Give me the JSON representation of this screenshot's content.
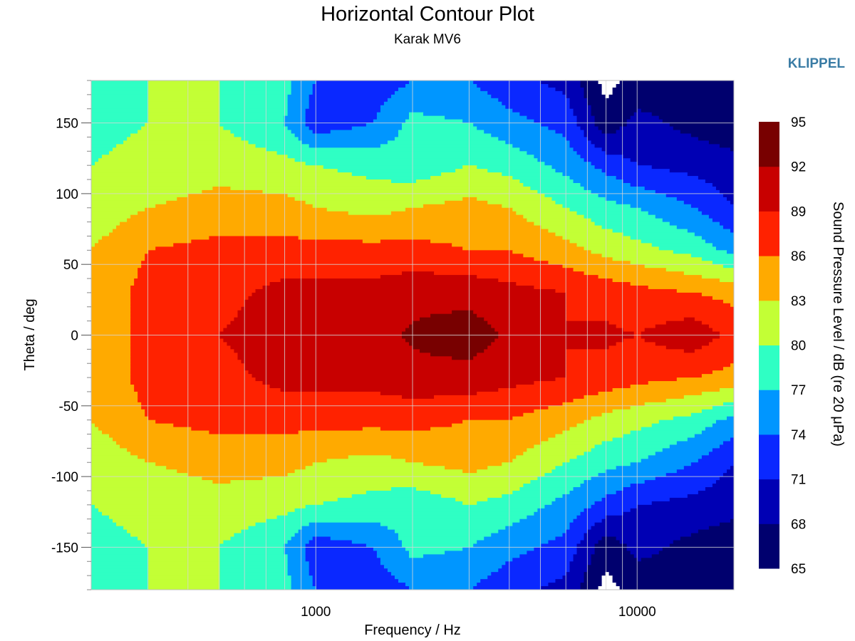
{
  "brand": "KLIPPEL",
  "colors": {
    "bands": [
      "#00006e",
      "#0000b4",
      "#0a28ff",
      "#0096ff",
      "#2fffc4",
      "#c3ff35",
      "#ffaa00",
      "#ff2200",
      "#c80000",
      "#780000"
    ],
    "background": "#ffffff",
    "grid": "#d6d6d6",
    "brand": "#3a7ca5"
  },
  "chart_data": {
    "type": "heatmap",
    "subtype": "filled-contour",
    "title": "Horizontal Contour Plot",
    "subtitle": "Karak MV6",
    "xlabel": "Frequency / Hz",
    "ylabel": "Theta / deg",
    "x_scale": "log",
    "xlim": [
      200,
      20000
    ],
    "ylim": [
      -180,
      180
    ],
    "x_ticks": [
      1000,
      10000
    ],
    "y_ticks": [
      150,
      100,
      50,
      0,
      -50,
      -100,
      -150
    ],
    "grid": true,
    "colorbar": {
      "label": "Sound Pressure Level / dB (re 20 μPa)",
      "levels": [
        65,
        68,
        71,
        74,
        77,
        80,
        83,
        86,
        89,
        92,
        95
      ]
    },
    "frequencies": [
      200,
      300,
      500,
      800,
      1000,
      1500,
      2000,
      3000,
      4000,
      6000,
      8000,
      10000,
      15000,
      20000
    ],
    "angles": [
      180,
      150,
      120,
      90,
      60,
      30,
      0
    ],
    "spl": [
      [
        79,
        80,
        80,
        78,
        74,
        72,
        74,
        74,
        72,
        70,
        64,
        66,
        66,
        66
      ],
      [
        79,
        80,
        80,
        77,
        72,
        74,
        78,
        77,
        75,
        73,
        66,
        69,
        67,
        66
      ],
      [
        80,
        81,
        82,
        81,
        80,
        79,
        78,
        80,
        79,
        76,
        73,
        71,
        70,
        69
      ],
      [
        81,
        83,
        84,
        84,
        83,
        82,
        83,
        84,
        83,
        80,
        78,
        77,
        74,
        71
      ],
      [
        83,
        86,
        87,
        87,
        87,
        87,
        87,
        86,
        86,
        84,
        82,
        81,
        79,
        76
      ],
      [
        84,
        87,
        88,
        90,
        90,
        90,
        91,
        91,
        90,
        89,
        88,
        87,
        86,
        85
      ],
      [
        84,
        87,
        89,
        90.5,
        90.5,
        90.5,
        92.5,
        93.5,
        91.5,
        89,
        89.5,
        89,
        91,
        88
      ]
    ]
  }
}
